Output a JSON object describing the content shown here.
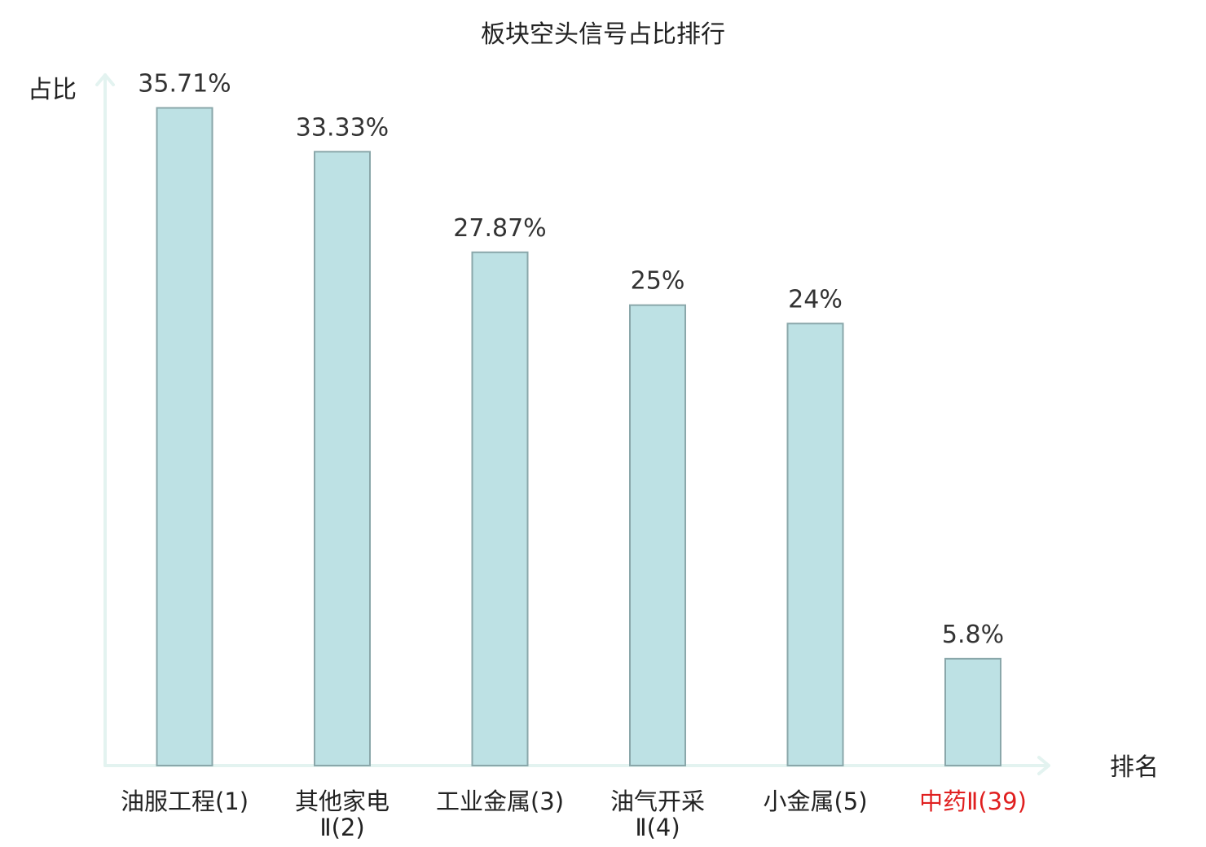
{
  "chart_data": {
    "type": "bar",
    "title": "板块空头信号占比排行",
    "ylabel": "占比",
    "xlabel": "排名",
    "ylim": [
      0,
      37.5
    ],
    "grid": false,
    "legend": "none",
    "categories": [
      [
        "油服工程(1)"
      ],
      [
        "其他家电",
        "Ⅱ(2)"
      ],
      [
        "工业金属(3)"
      ],
      [
        "油气开采",
        "Ⅱ(4)"
      ],
      [
        "小金属(5)"
      ],
      [
        "中药Ⅱ(39)"
      ]
    ],
    "values": [
      35.71,
      33.33,
      27.87,
      25,
      24,
      5.8
    ],
    "value_labels": [
      "35.71%",
      "33.33%",
      "27.87%",
      "25%",
      "24%",
      "5.8%"
    ],
    "highlight_index": 5,
    "colors": {
      "bar_fill": "#bde1e4",
      "bar_stroke": "#8aa7aa",
      "axis": "#e3f3f0",
      "highlight_text": "#e02020",
      "text": "#222222"
    }
  }
}
